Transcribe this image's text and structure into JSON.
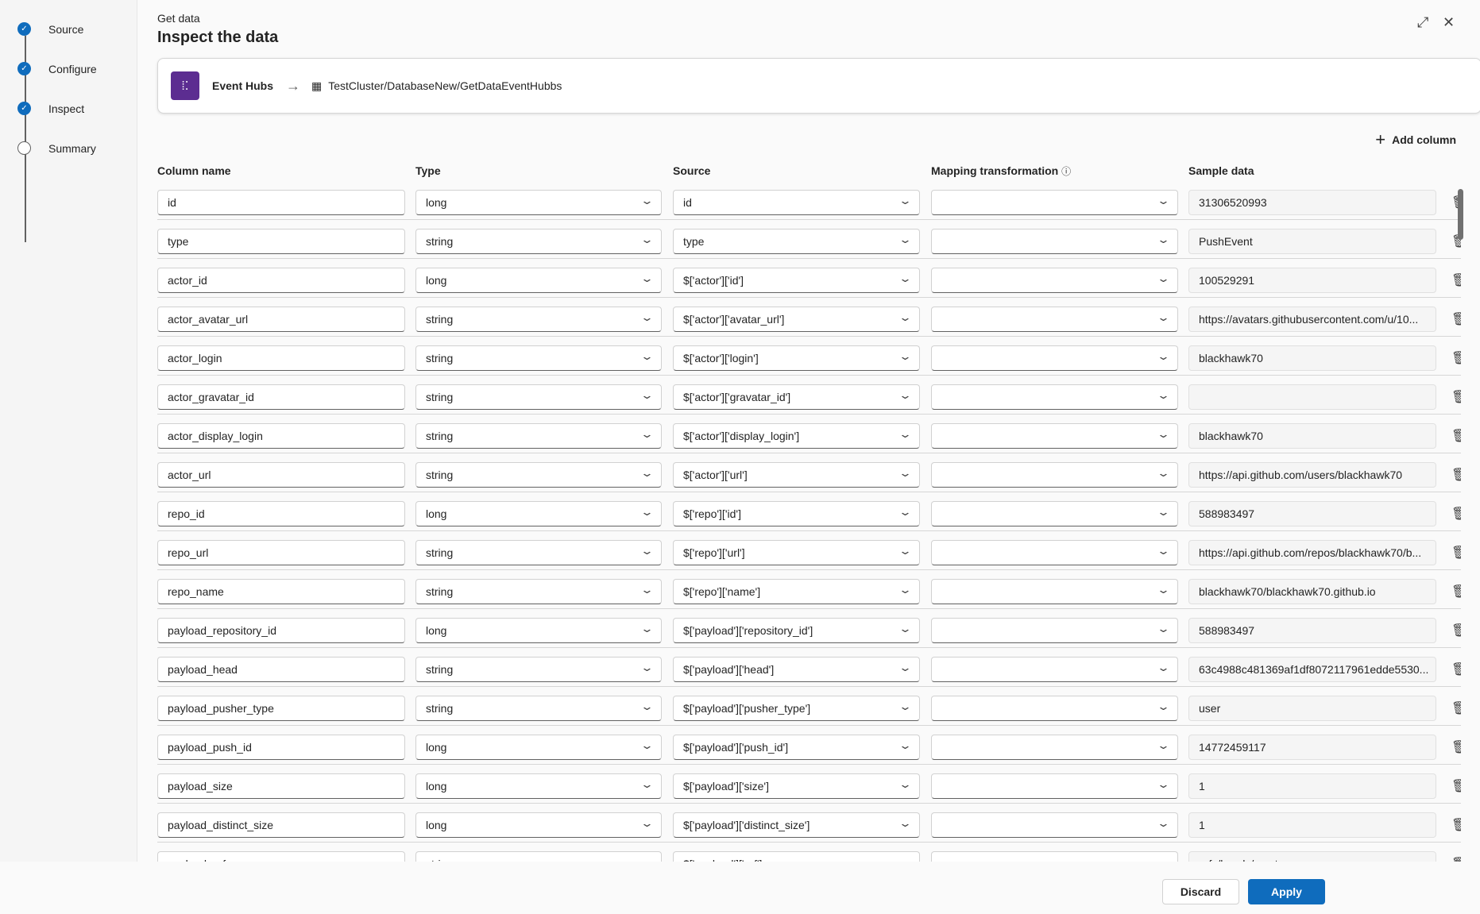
{
  "steps": [
    {
      "label": "Source",
      "done": true
    },
    {
      "label": "Configure",
      "done": true
    },
    {
      "label": "Inspect",
      "done": true
    },
    {
      "label": "Summary",
      "done": false
    }
  ],
  "header": {
    "kicker": "Get data",
    "title": "Inspect the data"
  },
  "source_card": {
    "source": "Event Hubs",
    "destination": "TestCluster/DatabaseNew/GetDataEventHubbs"
  },
  "add_column_label": "Add column",
  "columns": {
    "name": "Column name",
    "type": "Type",
    "source": "Source",
    "mapping": "Mapping transformation",
    "sample": "Sample data"
  },
  "rows": [
    {
      "name": "id",
      "type": "long",
      "source": "id",
      "mapping": "",
      "sample": "31306520993"
    },
    {
      "name": "type",
      "type": "string",
      "source": "type",
      "mapping": "",
      "sample": "PushEvent"
    },
    {
      "name": "actor_id",
      "type": "long",
      "source": "$['actor']['id']",
      "mapping": "",
      "sample": "100529291"
    },
    {
      "name": "actor_avatar_url",
      "type": "string",
      "source": "$['actor']['avatar_url']",
      "mapping": "",
      "sample": "https://avatars.githubusercontent.com/u/10..."
    },
    {
      "name": "actor_login",
      "type": "string",
      "source": "$['actor']['login']",
      "mapping": "",
      "sample": "blackhawk70"
    },
    {
      "name": "actor_gravatar_id",
      "type": "string",
      "source": "$['actor']['gravatar_id']",
      "mapping": "",
      "sample": ""
    },
    {
      "name": "actor_display_login",
      "type": "string",
      "source": "$['actor']['display_login']",
      "mapping": "",
      "sample": "blackhawk70"
    },
    {
      "name": "actor_url",
      "type": "string",
      "source": "$['actor']['url']",
      "mapping": "",
      "sample": "https://api.github.com/users/blackhawk70"
    },
    {
      "name": "repo_id",
      "type": "long",
      "source": "$['repo']['id']",
      "mapping": "",
      "sample": "588983497"
    },
    {
      "name": "repo_url",
      "type": "string",
      "source": "$['repo']['url']",
      "mapping": "",
      "sample": "https://api.github.com/repos/blackhawk70/b..."
    },
    {
      "name": "repo_name",
      "type": "string",
      "source": "$['repo']['name']",
      "mapping": "",
      "sample": "blackhawk70/blackhawk70.github.io"
    },
    {
      "name": "payload_repository_id",
      "type": "long",
      "source": "$['payload']['repository_id']",
      "mapping": "",
      "sample": "588983497"
    },
    {
      "name": "payload_head",
      "type": "string",
      "source": "$['payload']['head']",
      "mapping": "",
      "sample": "63c4988c481369af1df8072117961edde5530..."
    },
    {
      "name": "payload_pusher_type",
      "type": "string",
      "source": "$['payload']['pusher_type']",
      "mapping": "",
      "sample": "user"
    },
    {
      "name": "payload_push_id",
      "type": "long",
      "source": "$['payload']['push_id']",
      "mapping": "",
      "sample": "14772459117"
    },
    {
      "name": "payload_size",
      "type": "long",
      "source": "$['payload']['size']",
      "mapping": "",
      "sample": "1"
    },
    {
      "name": "payload_distinct_size",
      "type": "long",
      "source": "$['payload']['distinct_size']",
      "mapping": "",
      "sample": "1"
    },
    {
      "name": "payload_ref",
      "type": "string",
      "source": "$['payload']['ref']",
      "mapping": "",
      "sample": "refs/heads/master"
    }
  ],
  "footer": {
    "discard": "Discard",
    "apply": "Apply"
  },
  "colors": {
    "accent": "#0f6cbd",
    "event_hubs": "#5c2d91"
  }
}
